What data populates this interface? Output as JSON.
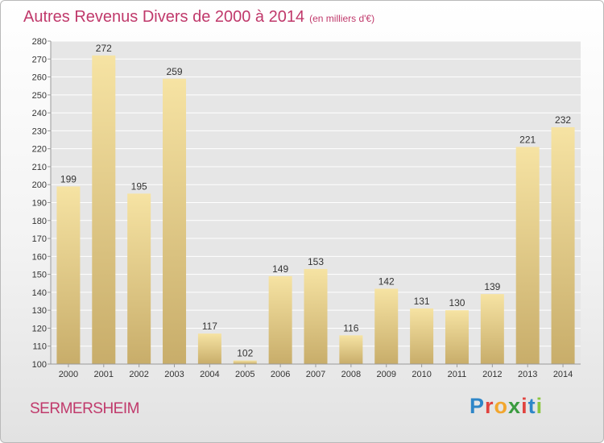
{
  "title": "Autres Revenus Divers de 2000 à 2014",
  "subtitle": "(en milliers d'€)",
  "commune": "SERMERSHEIM",
  "logo": {
    "letters": [
      "P",
      "r",
      "o",
      "x",
      "i",
      "t",
      "i"
    ],
    "colors": [
      "#2e86c8",
      "#e0433f",
      "#f2a62e",
      "#3a9b3f",
      "#e0433f",
      "#2e86c8",
      "#8ac53f"
    ]
  },
  "colors": {
    "title": "#c0396b",
    "bar_light": "#f6e3a3",
    "bar_dark": "#c8ad6a",
    "grid": "#ffffff",
    "plot_bg": "#e6e6e6"
  },
  "chart_data": {
    "type": "bar",
    "categories": [
      "2000",
      "2001",
      "2002",
      "2003",
      "2004",
      "2005",
      "2006",
      "2007",
      "2008",
      "2009",
      "2010",
      "2011",
      "2012",
      "2013",
      "2014"
    ],
    "values": [
      199,
      272,
      195,
      259,
      117,
      102,
      149,
      153,
      116,
      142,
      131,
      130,
      139,
      221,
      232
    ],
    "ylim": [
      100,
      280
    ],
    "yticks": [
      100,
      110,
      120,
      130,
      140,
      150,
      160,
      170,
      180,
      190,
      200,
      210,
      220,
      230,
      240,
      250,
      260,
      270,
      280
    ],
    "grid": true
  }
}
